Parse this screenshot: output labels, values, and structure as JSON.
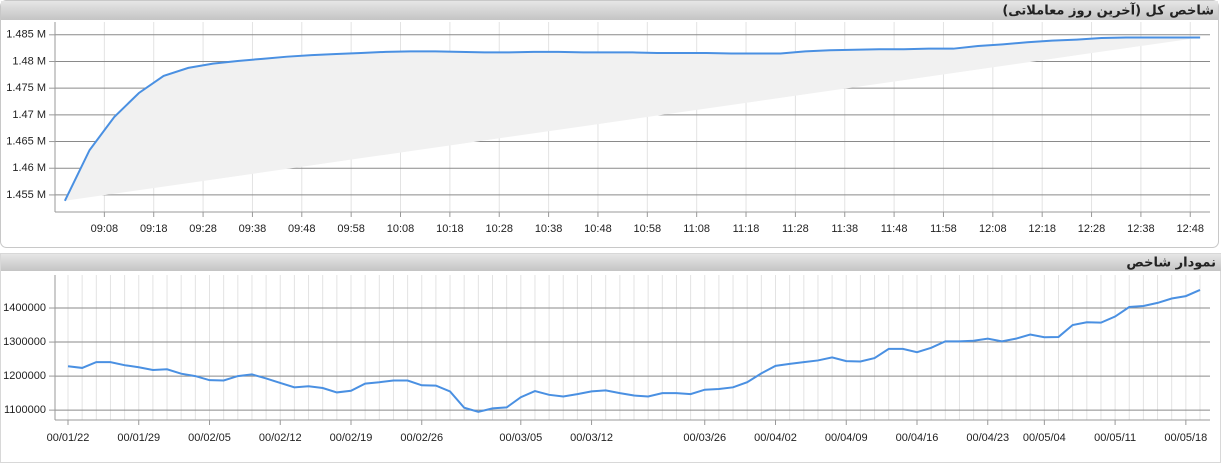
{
  "chart_data": [
    {
      "type": "line",
      "title": "شاخص کل (آخرین روز معاملاتی)",
      "x": [
        "09:00",
        "09:05",
        "09:10",
        "09:15",
        "09:20",
        "09:25",
        "09:30",
        "09:35",
        "09:40",
        "09:45",
        "09:50",
        "09:55",
        "10:00",
        "10:05",
        "10:10",
        "10:15",
        "10:20",
        "10:25",
        "10:30",
        "10:35",
        "10:40",
        "10:45",
        "10:50",
        "10:55",
        "11:00",
        "11:05",
        "11:10",
        "11:15",
        "11:20",
        "11:25",
        "11:30",
        "11:35",
        "11:40",
        "11:45",
        "11:50",
        "11:55",
        "12:00",
        "12:05",
        "12:10",
        "12:15",
        "12:20",
        "12:25",
        "12:30",
        "12:35",
        "12:40",
        "12:45",
        "12:50"
      ],
      "values": [
        1453900,
        1463400,
        1469600,
        1474100,
        1477300,
        1478800,
        1479600,
        1480100,
        1480500,
        1480900,
        1481200,
        1481400,
        1481600,
        1481800,
        1481900,
        1481900,
        1481800,
        1481700,
        1481700,
        1481800,
        1481800,
        1481700,
        1481700,
        1481700,
        1481600,
        1481600,
        1481600,
        1481500,
        1481500,
        1481500,
        1481900,
        1482100,
        1482200,
        1482300,
        1482300,
        1482400,
        1482400,
        1482900,
        1483200,
        1483600,
        1483900,
        1484100,
        1484400,
        1484500,
        1484500,
        1484500,
        1484500
      ],
      "color": "#4a90e2",
      "xlim": [
        "08:58",
        "12:52"
      ],
      "xticks": [
        "09:08",
        "09:18",
        "09:28",
        "09:38",
        "09:48",
        "09:58",
        "10:08",
        "10:18",
        "10:28",
        "10:38",
        "10:48",
        "10:58",
        "11:08",
        "11:18",
        "11:28",
        "11:38",
        "11:48",
        "11:58",
        "12:08",
        "12:18",
        "12:28",
        "12:38",
        "12:48"
      ],
      "ylim": [
        1451800,
        1487400
      ],
      "yticks": [
        {
          "value": 1455000,
          "label": "1.455 M"
        },
        {
          "value": 1460000,
          "label": "1.46 M"
        },
        {
          "value": 1465000,
          "label": "1.465 M"
        },
        {
          "value": 1470000,
          "label": "1.47 M"
        },
        {
          "value": 1475000,
          "label": "1.475 M"
        },
        {
          "value": 1480000,
          "label": "1.48 M"
        },
        {
          "value": 1485000,
          "label": "1.485 M"
        }
      ],
      "grid": true
    },
    {
      "type": "line",
      "title": "نمودار شاخص",
      "categories": [
        "00/01/22",
        null,
        null,
        null,
        null,
        "00/01/29",
        null,
        null,
        null,
        null,
        "00/02/05",
        null,
        null,
        null,
        null,
        "00/02/12",
        null,
        null,
        null,
        null,
        "00/02/19",
        null,
        null,
        null,
        null,
        "00/02/26",
        null,
        null,
        null,
        null,
        null,
        null,
        "00/03/05",
        null,
        null,
        null,
        null,
        "00/03/12",
        null,
        null,
        null,
        null,
        null,
        null,
        null,
        "00/03/26",
        null,
        null,
        null,
        null,
        "00/04/02",
        null,
        null,
        null,
        null,
        "00/04/09",
        null,
        null,
        null,
        null,
        "00/04/16",
        null,
        null,
        null,
        null,
        "00/04/23",
        null,
        null,
        null,
        "00/05/04",
        null,
        null,
        null,
        null,
        "00/05/11",
        null,
        null,
        null,
        null,
        "00/05/18",
        null
      ],
      "values": [
        1229000,
        1224000,
        1241000,
        1241000,
        1232000,
        1226000,
        1218000,
        1220000,
        1207000,
        1200000,
        1188000,
        1187000,
        1200000,
        1205000,
        1193000,
        1180000,
        1167000,
        1170000,
        1165000,
        1152000,
        1157000,
        1178000,
        1182000,
        1187000,
        1187000,
        1173000,
        1172000,
        1155000,
        1107000,
        1095000,
        1105000,
        1108000,
        1138000,
        1156000,
        1145000,
        1140000,
        1147000,
        1155000,
        1158000,
        1150000,
        1143000,
        1140000,
        1150000,
        1150000,
        1147000,
        1160000,
        1162000,
        1167000,
        1182000,
        1208000,
        1230000,
        1236000,
        1241000,
        1246000,
        1255000,
        1244000,
        1243000,
        1253000,
        1280000,
        1280000,
        1270000,
        1283000,
        1302000,
        1302000,
        1304000,
        1310000,
        1302000,
        1310000,
        1322000,
        1314000,
        1315000,
        1350000,
        1358000,
        1357000,
        1375000,
        1403000,
        1406000,
        1415000,
        1428000,
        1435000,
        1453000
      ],
      "color": "#4a90e2",
      "ylim": [
        1071000,
        1497000
      ],
      "yticks": [
        1100000,
        1200000,
        1300000,
        1400000
      ],
      "grid": true
    }
  ]
}
